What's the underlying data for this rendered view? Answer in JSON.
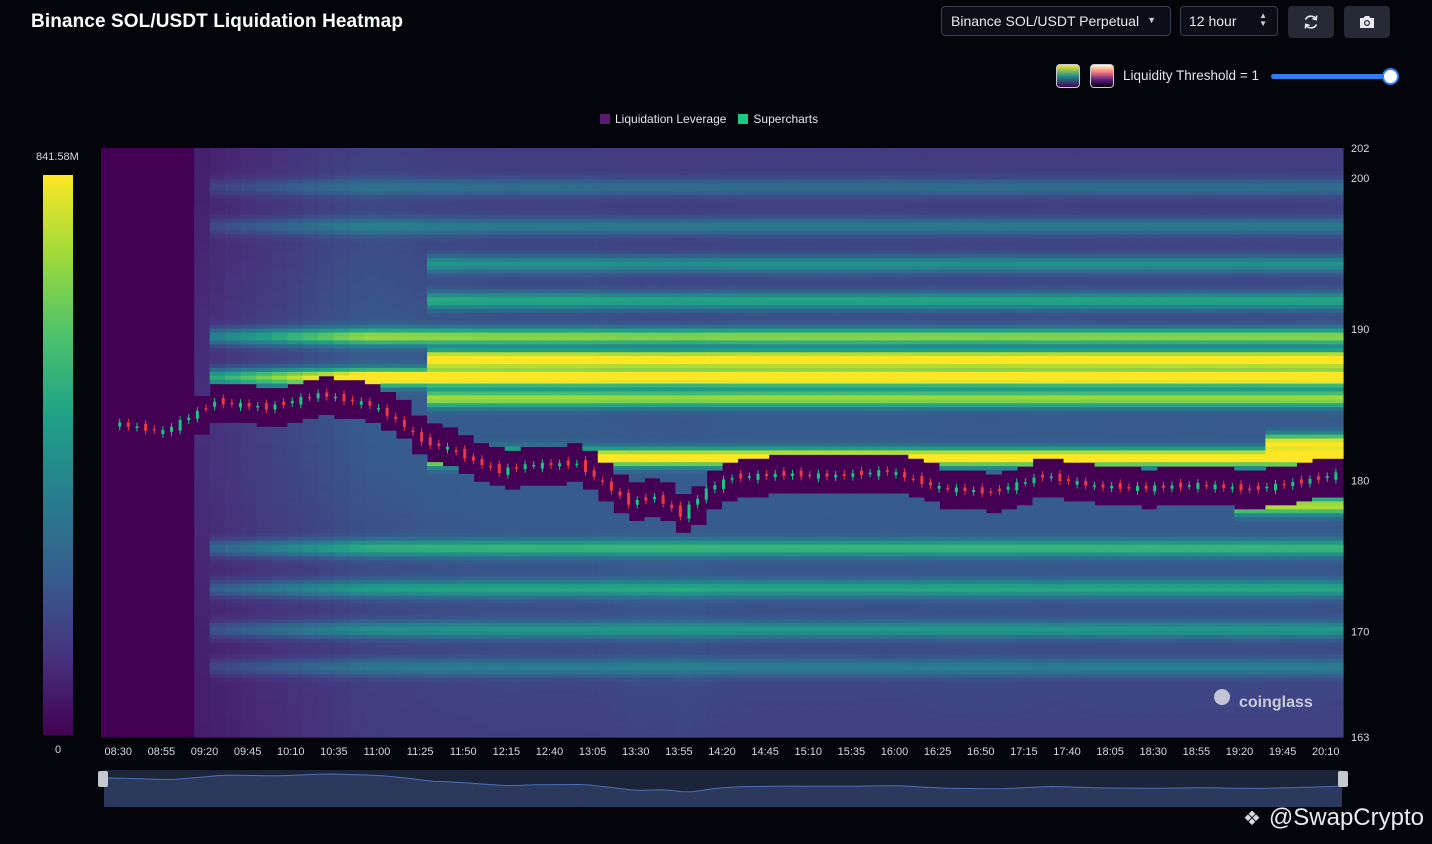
{
  "header": {
    "title": "Binance SOL/USDT Liquidation Heatmap",
    "market_select": "Binance SOL/USDT Perpetual",
    "range_select": "12 hour",
    "refresh_icon": "refresh-icon",
    "camera_icon": "camera-icon"
  },
  "toolbar": {
    "threshold_label": "Liquidity Threshold = 1",
    "threshold_value": 1.0,
    "palette_swatches": [
      "viridis-swatch",
      "magma-swatch"
    ]
  },
  "legend": {
    "items": [
      {
        "label": "Liquidation Leverage",
        "color": "#5a1a70"
      },
      {
        "label": "Supercharts",
        "color": "#18c98a"
      }
    ]
  },
  "colorbar": {
    "max_label": "841.58M",
    "min_label": "0"
  },
  "watermarks": {
    "chart": "coinglass",
    "corner": "@SwapCrypto"
  },
  "chart_data": {
    "type": "heatmap",
    "title": "Binance SOL/USDT Liquidation Heatmap",
    "x_ticks": [
      "08:30",
      "08:55",
      "09:20",
      "09:45",
      "10:10",
      "10:35",
      "11:00",
      "11:25",
      "11:50",
      "12:15",
      "12:40",
      "13:05",
      "13:30",
      "13:55",
      "14:20",
      "14:45",
      "15:10",
      "15:35",
      "16:00",
      "16:25",
      "16:50",
      "17:15",
      "17:40",
      "18:05",
      "18:30",
      "18:55",
      "19:20",
      "19:45",
      "20:10"
    ],
    "y_ticks": [
      "202",
      "200",
      "190",
      "180",
      "170",
      "163"
    ],
    "y_range": [
      163,
      202
    ],
    "x_range_minutes": [
      500,
      1220
    ],
    "colorscale": "viridis",
    "value_range": [
      0,
      841580000
    ],
    "liquidation_bands": [
      {
        "price": 199.4,
        "start": "09:20",
        "intensity": 0.18
      },
      {
        "price": 196.8,
        "start": "09:20",
        "intensity": 0.22
      },
      {
        "price": 194.3,
        "start": "11:25",
        "intensity": 0.3
      },
      {
        "price": 191.9,
        "start": "11:25",
        "intensity": 0.38
      },
      {
        "price": 189.5,
        "start": "09:20",
        "intensity": 0.6
      },
      {
        "price": 188.0,
        "start": "11:25",
        "intensity": 0.95
      },
      {
        "price": 186.8,
        "start": "09:20",
        "intensity": 0.9
      },
      {
        "price": 185.4,
        "start": "11:25",
        "intensity": 0.6
      },
      {
        "price": 182.5,
        "start": "19:35",
        "intensity": 0.7
      },
      {
        "price": 181.5,
        "start": "11:25",
        "intensity": 0.9
      },
      {
        "price": 178.3,
        "start": "19:20",
        "intensity": 0.62
      },
      {
        "price": 175.5,
        "start": "09:20",
        "intensity": 0.4
      },
      {
        "price": 172.8,
        "start": "09:20",
        "intensity": 0.35
      },
      {
        "price": 170.1,
        "start": "09:20",
        "intensity": 0.3
      },
      {
        "price": 167.6,
        "start": "09:20",
        "intensity": 0.22
      }
    ],
    "price_candles": {
      "times": [
        "08:30",
        "09:00",
        "09:30",
        "10:00",
        "10:30",
        "11:00",
        "11:15",
        "11:30",
        "11:45",
        "12:00",
        "12:15",
        "12:30",
        "13:00",
        "13:30",
        "13:45",
        "14:00",
        "14:15",
        "14:30",
        "15:00",
        "15:30",
        "16:00",
        "16:30",
        "17:00",
        "17:30",
        "18:00",
        "18:30",
        "19:00",
        "19:30",
        "20:00",
        "20:20"
      ],
      "close": [
        183.8,
        183.2,
        185.2,
        184.8,
        185.7,
        185.0,
        184.0,
        182.6,
        182.1,
        181.3,
        180.6,
        181.0,
        181.1,
        178.5,
        178.9,
        177.7,
        179.4,
        180.2,
        180.4,
        180.3,
        180.6,
        179.5,
        179.2,
        180.3,
        179.6,
        179.5,
        179.7,
        179.4,
        179.9,
        180.4
      ]
    }
  }
}
